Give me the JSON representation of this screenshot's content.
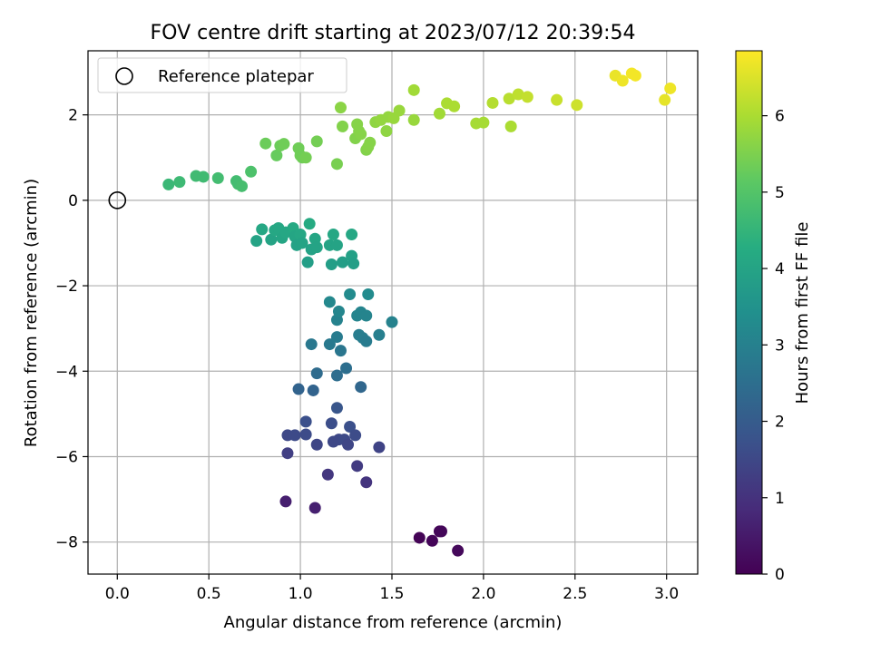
{
  "chart_data": {
    "type": "scatter",
    "title": "FOV centre drift starting at 2023/07/12 20:39:54",
    "xlabel": "Angular distance from reference (arcmin)",
    "ylabel": "Rotation from reference (arcmin)",
    "xlim": [
      -0.16,
      3.17
    ],
    "ylim": [
      -8.75,
      3.5
    ],
    "xticks": [
      0.0,
      0.5,
      1.0,
      1.5,
      2.0,
      2.5,
      3.0
    ],
    "xtick_labels": [
      "0.0",
      "0.5",
      "1.0",
      "1.5",
      "2.0",
      "2.5",
      "3.0"
    ],
    "yticks": [
      -8,
      -6,
      -4,
      -2,
      0,
      2
    ],
    "ytick_labels": [
      "−8",
      "−6",
      "−4",
      "−2",
      "0",
      "2"
    ],
    "grid": true,
    "legend": {
      "position": "top-left",
      "entries": [
        "Reference platepar"
      ]
    },
    "reference_point": {
      "x": 0.0,
      "y": 0.0
    },
    "colorbar": {
      "label": "Hours from first FF file",
      "range": [
        0,
        6.85
      ],
      "ticks": [
        0,
        1,
        2,
        3,
        4,
        5,
        6
      ],
      "tick_labels": [
        "0",
        "1",
        "2",
        "3",
        "4",
        "5",
        "6"
      ],
      "colormap": "viridis"
    },
    "points": [
      {
        "x": 1.65,
        "y": -7.9,
        "t": 0.05
      },
      {
        "x": 1.72,
        "y": -7.97,
        "t": 0.08
      },
      {
        "x": 1.76,
        "y": -7.75,
        "t": 0.1
      },
      {
        "x": 1.77,
        "y": -7.75,
        "t": 0.12
      },
      {
        "x": 1.86,
        "y": -8.2,
        "t": 0.15
      },
      {
        "x": 0.92,
        "y": -7.05,
        "t": 0.6
      },
      {
        "x": 1.08,
        "y": -7.2,
        "t": 0.62
      },
      {
        "x": 1.15,
        "y": -6.42,
        "t": 1.1
      },
      {
        "x": 1.31,
        "y": -6.22,
        "t": 1.2
      },
      {
        "x": 1.36,
        "y": -6.6,
        "t": 1.05
      },
      {
        "x": 0.93,
        "y": -5.92,
        "t": 1.3
      },
      {
        "x": 0.93,
        "y": -5.5,
        "t": 1.5
      },
      {
        "x": 0.97,
        "y": -5.5,
        "t": 1.55
      },
      {
        "x": 1.03,
        "y": -5.48,
        "t": 1.6
      },
      {
        "x": 1.03,
        "y": -5.18,
        "t": 1.7
      },
      {
        "x": 1.09,
        "y": -5.72,
        "t": 1.45
      },
      {
        "x": 1.17,
        "y": -5.22,
        "t": 1.65
      },
      {
        "x": 1.18,
        "y": -5.65,
        "t": 1.5
      },
      {
        "x": 1.21,
        "y": -5.6,
        "t": 1.5
      },
      {
        "x": 1.24,
        "y": -5.6,
        "t": 1.55
      },
      {
        "x": 1.26,
        "y": -5.72,
        "t": 1.45
      },
      {
        "x": 1.27,
        "y": -5.3,
        "t": 1.7
      },
      {
        "x": 1.3,
        "y": -5.5,
        "t": 1.6
      },
      {
        "x": 1.43,
        "y": -5.78,
        "t": 1.4
      },
      {
        "x": 1.2,
        "y": -4.86,
        "t": 1.85
      },
      {
        "x": 0.99,
        "y": -4.42,
        "t": 2.2
      },
      {
        "x": 1.07,
        "y": -4.45,
        "t": 2.2
      },
      {
        "x": 1.09,
        "y": -4.05,
        "t": 2.4
      },
      {
        "x": 1.2,
        "y": -4.1,
        "t": 2.45
      },
      {
        "x": 1.25,
        "y": -3.93,
        "t": 2.5
      },
      {
        "x": 1.33,
        "y": -4.37,
        "t": 2.3
      },
      {
        "x": 1.06,
        "y": -3.37,
        "t": 2.75
      },
      {
        "x": 1.16,
        "y": -3.37,
        "t": 2.8
      },
      {
        "x": 1.2,
        "y": -3.2,
        "t": 2.85
      },
      {
        "x": 1.22,
        "y": -3.52,
        "t": 2.7
      },
      {
        "x": 1.2,
        "y": -2.8,
        "t": 3.05
      },
      {
        "x": 1.21,
        "y": -2.6,
        "t": 3.15
      },
      {
        "x": 1.16,
        "y": -2.38,
        "t": 3.2
      },
      {
        "x": 1.27,
        "y": -2.2,
        "t": 3.3
      },
      {
        "x": 1.31,
        "y": -2.7,
        "t": 3.1
      },
      {
        "x": 1.32,
        "y": -3.15,
        "t": 2.9
      },
      {
        "x": 1.33,
        "y": -2.62,
        "t": 3.1
      },
      {
        "x": 1.34,
        "y": -3.22,
        "t": 2.9
      },
      {
        "x": 1.36,
        "y": -3.3,
        "t": 2.85
      },
      {
        "x": 1.36,
        "y": -2.7,
        "t": 3.1
      },
      {
        "x": 1.37,
        "y": -2.2,
        "t": 3.3
      },
      {
        "x": 1.43,
        "y": -3.15,
        "t": 2.95
      },
      {
        "x": 1.5,
        "y": -2.85,
        "t": 3.05
      },
      {
        "x": 0.76,
        "y": -0.95,
        "t": 4.0
      },
      {
        "x": 0.79,
        "y": -0.68,
        "t": 4.1
      },
      {
        "x": 0.84,
        "y": -0.92,
        "t": 4.0
      },
      {
        "x": 0.86,
        "y": -0.7,
        "t": 4.1
      },
      {
        "x": 0.88,
        "y": -0.65,
        "t": 4.1
      },
      {
        "x": 0.9,
        "y": -0.88,
        "t": 4.05
      },
      {
        "x": 0.92,
        "y": -0.75,
        "t": 4.1
      },
      {
        "x": 0.96,
        "y": -0.65,
        "t": 4.15
      },
      {
        "x": 0.97,
        "y": -0.85,
        "t": 4.05
      },
      {
        "x": 0.98,
        "y": -1.05,
        "t": 3.95
      },
      {
        "x": 1.0,
        "y": -0.8,
        "t": 4.1
      },
      {
        "x": 1.01,
        "y": -1.0,
        "t": 4.0
      },
      {
        "x": 1.04,
        "y": -1.45,
        "t": 3.85
      },
      {
        "x": 1.05,
        "y": -0.55,
        "t": 4.2
      },
      {
        "x": 1.06,
        "y": -1.15,
        "t": 3.95
      },
      {
        "x": 1.08,
        "y": -0.9,
        "t": 4.05
      },
      {
        "x": 1.09,
        "y": -1.1,
        "t": 4.0
      },
      {
        "x": 1.16,
        "y": -1.05,
        "t": 4.0
      },
      {
        "x": 1.17,
        "y": -1.5,
        "t": 3.85
      },
      {
        "x": 1.18,
        "y": -0.8,
        "t": 4.1
      },
      {
        "x": 1.2,
        "y": -1.05,
        "t": 4.0
      },
      {
        "x": 1.23,
        "y": -1.45,
        "t": 3.85
      },
      {
        "x": 1.28,
        "y": -0.8,
        "t": 4.1
      },
      {
        "x": 1.28,
        "y": -1.3,
        "t": 3.9
      },
      {
        "x": 1.29,
        "y": -1.48,
        "t": 3.85
      },
      {
        "x": 0.28,
        "y": 0.37,
        "t": 4.6
      },
      {
        "x": 0.34,
        "y": 0.43,
        "t": 4.65
      },
      {
        "x": 0.43,
        "y": 0.57,
        "t": 4.7
      },
      {
        "x": 0.47,
        "y": 0.55,
        "t": 4.7
      },
      {
        "x": 0.55,
        "y": 0.52,
        "t": 4.75
      },
      {
        "x": 0.65,
        "y": 0.45,
        "t": 4.75
      },
      {
        "x": 0.66,
        "y": 0.38,
        "t": 4.75
      },
      {
        "x": 0.68,
        "y": 0.33,
        "t": 4.8
      },
      {
        "x": 0.73,
        "y": 0.67,
        "t": 4.9
      },
      {
        "x": 0.81,
        "y": 1.33,
        "t": 5.3
      },
      {
        "x": 0.87,
        "y": 1.05,
        "t": 5.25
      },
      {
        "x": 0.89,
        "y": 1.28,
        "t": 5.3
      },
      {
        "x": 0.91,
        "y": 1.32,
        "t": 5.35
      },
      {
        "x": 0.99,
        "y": 1.22,
        "t": 5.35
      },
      {
        "x": 1.0,
        "y": 1.05,
        "t": 5.35
      },
      {
        "x": 1.01,
        "y": 1.0,
        "t": 5.35
      },
      {
        "x": 1.03,
        "y": 1.0,
        "t": 5.4
      },
      {
        "x": 1.09,
        "y": 1.38,
        "t": 5.4
      },
      {
        "x": 1.2,
        "y": 0.85,
        "t": 5.45
      },
      {
        "x": 1.22,
        "y": 2.17,
        "t": 5.65
      },
      {
        "x": 1.23,
        "y": 1.73,
        "t": 5.55
      },
      {
        "x": 1.3,
        "y": 1.45,
        "t": 5.55
      },
      {
        "x": 1.31,
        "y": 1.78,
        "t": 5.6
      },
      {
        "x": 1.32,
        "y": 1.62,
        "t": 5.6
      },
      {
        "x": 1.33,
        "y": 1.55,
        "t": 5.6
      },
      {
        "x": 1.36,
        "y": 1.18,
        "t": 5.55
      },
      {
        "x": 1.37,
        "y": 1.25,
        "t": 5.6
      },
      {
        "x": 1.38,
        "y": 1.35,
        "t": 5.6
      },
      {
        "x": 1.41,
        "y": 1.83,
        "t": 5.7
      },
      {
        "x": 1.44,
        "y": 1.88,
        "t": 5.75
      },
      {
        "x": 1.47,
        "y": 1.62,
        "t": 5.7
      },
      {
        "x": 1.48,
        "y": 1.95,
        "t": 5.75
      },
      {
        "x": 1.51,
        "y": 1.92,
        "t": 5.8
      },
      {
        "x": 1.54,
        "y": 2.1,
        "t": 5.8
      },
      {
        "x": 1.62,
        "y": 2.58,
        "t": 5.9
      },
      {
        "x": 1.62,
        "y": 1.88,
        "t": 5.8
      },
      {
        "x": 1.76,
        "y": 2.03,
        "t": 5.9
      },
      {
        "x": 1.8,
        "y": 2.27,
        "t": 6.0
      },
      {
        "x": 1.84,
        "y": 2.2,
        "t": 6.0
      },
      {
        "x": 1.96,
        "y": 1.8,
        "t": 5.95
      },
      {
        "x": 2.0,
        "y": 1.82,
        "t": 5.95
      },
      {
        "x": 2.05,
        "y": 2.28,
        "t": 6.1
      },
      {
        "x": 2.14,
        "y": 2.38,
        "t": 6.15
      },
      {
        "x": 2.15,
        "y": 1.73,
        "t": 6.0
      },
      {
        "x": 2.19,
        "y": 2.48,
        "t": 6.2
      },
      {
        "x": 2.24,
        "y": 2.42,
        "t": 6.25
      },
      {
        "x": 2.4,
        "y": 2.35,
        "t": 6.3
      },
      {
        "x": 2.51,
        "y": 2.23,
        "t": 6.35
      },
      {
        "x": 2.72,
        "y": 2.92,
        "t": 6.65
      },
      {
        "x": 2.76,
        "y": 2.8,
        "t": 6.7
      },
      {
        "x": 2.81,
        "y": 2.97,
        "t": 6.75
      },
      {
        "x": 2.83,
        "y": 2.92,
        "t": 6.75
      },
      {
        "x": 2.99,
        "y": 2.35,
        "t": 6.6
      },
      {
        "x": 3.02,
        "y": 2.62,
        "t": 6.7
      }
    ]
  }
}
